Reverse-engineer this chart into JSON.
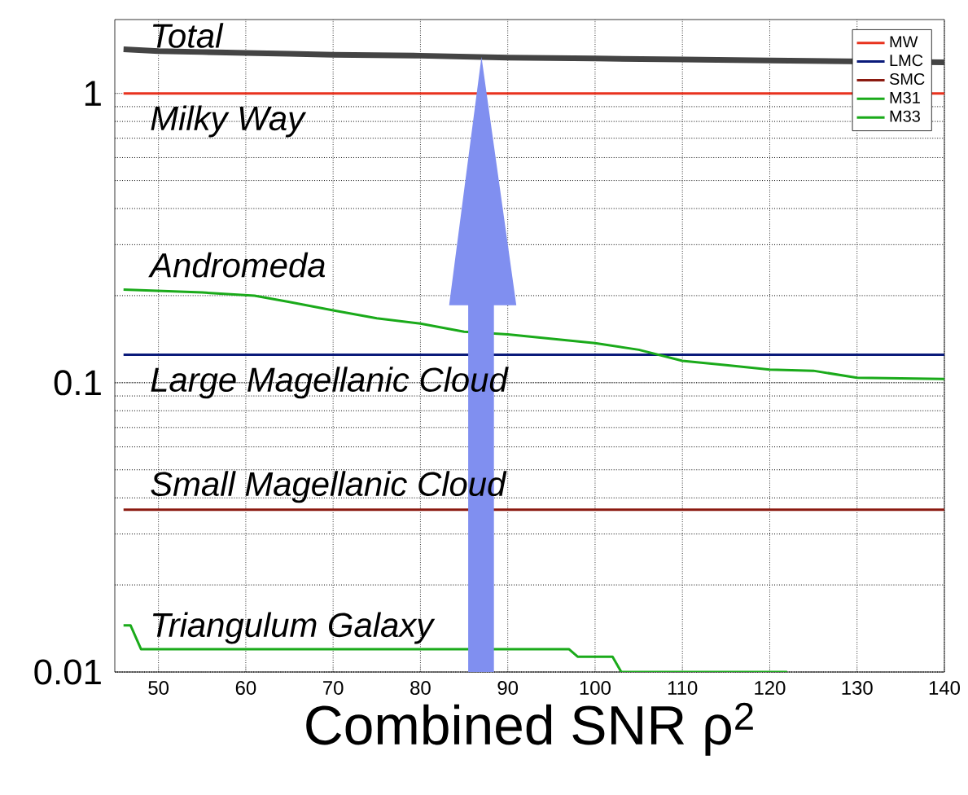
{
  "chart_data": {
    "type": "line",
    "xlabel": "Combined SNR ρ$^{2}$",
    "log": "y",
    "grid": true,
    "legend": "top right",
    "line_style": "solid",
    "marker": "none",
    "xlim": [
      45,
      140
    ],
    "ylim": [
      0.01,
      1.8
    ],
    "xticks": [
      50,
      60,
      70,
      80,
      90,
      100,
      110,
      120,
      130,
      140
    ],
    "yticks": [
      0.01,
      0.1,
      1
    ],
    "series": [
      {
        "color": "#444444",
        "x": [
          46,
          50,
          55,
          60,
          65,
          70,
          80,
          90,
          100,
          110,
          120,
          140
        ],
        "values": [
          1.42,
          1.4,
          1.39,
          1.38,
          1.37,
          1.36,
          1.35,
          1.33,
          1.32,
          1.31,
          1.3,
          1.28
        ]
      },
      {
        "name": "MW",
        "color": "#e8321e",
        "x": [
          46,
          140
        ],
        "values": [
          1,
          1
        ]
      },
      {
        "name": "LMC",
        "color": "#0a1a7a",
        "x": [
          46,
          140
        ],
        "values": [
          0.125,
          0.125
        ]
      },
      {
        "name": "SMC",
        "color": "#8b1a10",
        "x": [
          46,
          140
        ],
        "values": [
          0.0364,
          0.0364
        ]
      },
      {
        "name": "M31",
        "color": "#1aaa1a",
        "x": [
          46,
          55,
          61,
          65,
          70,
          75,
          80,
          85,
          90,
          100,
          105,
          110,
          115,
          120,
          125,
          130,
          140
        ],
        "values": [
          0.21,
          0.205,
          0.2,
          0.19,
          0.178,
          0.167,
          0.16,
          0.15,
          0.147,
          0.137,
          0.13,
          0.119,
          0.115,
          0.111,
          0.11,
          0.104,
          0.103
        ]
      },
      {
        "name": "M33",
        "color": "#1aaa1a",
        "x": [
          46,
          46.8,
          48,
          97,
          98,
          102,
          103,
          122
        ],
        "values": [
          0.0145,
          0.0145,
          0.012,
          0.012,
          0.0113,
          0.0113,
          0.01,
          0.01
        ]
      }
    ],
    "annotations": [
      "*Total*",
      "*Milky Way*",
      "*Andromeda*",
      "*Large Magellanic Cloud*",
      "*Small Magellanic Cloud*",
      "*Triangulum Galaxy*"
    ]
  }
}
